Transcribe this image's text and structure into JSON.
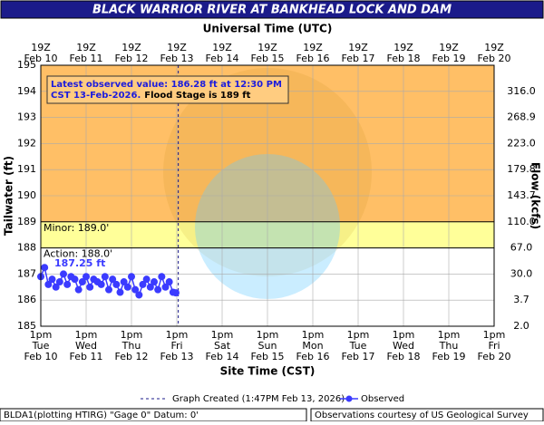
{
  "chart_data": {
    "type": "line",
    "title": "BLACK WARRIOR RIVER AT BANKHEAD LOCK AND DAM",
    "top_axis_title": "Universal Time (UTC)",
    "x_axis_title": "Site Time (CST)",
    "y_axis_title": "Tailwater (ft)",
    "y2_axis_title": "Flow (kcfs)",
    "ylim": [
      185,
      195
    ],
    "yticks": [
      185,
      186,
      187,
      188,
      189,
      190,
      191,
      192,
      193,
      194,
      195
    ],
    "flow_ticks": [
      {
        "stage": 194,
        "value": 316,
        "label": "316.0"
      },
      {
        "stage": 193,
        "value": 268.9,
        "label": "268.9"
      },
      {
        "stage": 192,
        "value": 223,
        "label": "223.0"
      },
      {
        "stage": 191,
        "value": 179.8,
        "label": "179.8"
      },
      {
        "stage": 190,
        "value": 143.7,
        "label": "143.7"
      },
      {
        "stage": 189,
        "value": 110,
        "label": "110.0"
      },
      {
        "stage": 188,
        "value": 67,
        "label": "67.0"
      },
      {
        "stage": 187,
        "value": 30,
        "label": "30.0"
      },
      {
        "stage": 186,
        "value": 3.7,
        "label": "3.7"
      },
      {
        "stage": 185,
        "value": 2,
        "label": "2.0"
      }
    ],
    "x_ticks_bottom": [
      {
        "time": "1pm",
        "day": "Tue",
        "date": "Feb 10"
      },
      {
        "time": "1pm",
        "day": "Wed",
        "date": "Feb 11"
      },
      {
        "time": "1pm",
        "day": "Thu",
        "date": "Feb 12"
      },
      {
        "time": "1pm",
        "day": "Fri",
        "date": "Feb 13"
      },
      {
        "time": "1pm",
        "day": "Sat",
        "date": "Feb 14"
      },
      {
        "time": "1pm",
        "day": "Sun",
        "date": "Feb 15"
      },
      {
        "time": "1pm",
        "day": "Mon",
        "date": "Feb 16"
      },
      {
        "time": "1pm",
        "day": "Tue",
        "date": "Feb 17"
      },
      {
        "time": "1pm",
        "day": "Wed",
        "date": "Feb 18"
      },
      {
        "time": "1pm",
        "day": "Thu",
        "date": "Feb 19"
      },
      {
        "time": "1pm",
        "day": "Fri",
        "date": "Feb 20"
      }
    ],
    "x_ticks_top": [
      {
        "time": "19Z",
        "date": "Feb 10"
      },
      {
        "time": "19Z",
        "date": "Feb 11"
      },
      {
        "time": "19Z",
        "date": "Feb 12"
      },
      {
        "time": "19Z",
        "date": "Feb 13"
      },
      {
        "time": "19Z",
        "date": "Feb 14"
      },
      {
        "time": "19Z",
        "date": "Feb 15"
      },
      {
        "time": "19Z",
        "date": "Feb 16"
      },
      {
        "time": "19Z",
        "date": "Feb 17"
      },
      {
        "time": "19Z",
        "date": "Feb 18"
      },
      {
        "time": "19Z",
        "date": "Feb 19"
      },
      {
        "time": "19Z",
        "date": "Feb 20"
      }
    ],
    "thresholds": [
      {
        "label": "Action: 188.0'",
        "value": 188,
        "color": "#ffff99"
      },
      {
        "label": "Minor: 189.0'",
        "value": 189,
        "color": "#ffbf66"
      }
    ],
    "peak_label": "187.25 ft",
    "latest_note": {
      "line1": "Latest observed value: 186.28 ft at 12:30 PM",
      "line2": "CST 13-Feb-2026.",
      "flood": "Flood Stage is 189 ft"
    },
    "created": {
      "x": "Feb 13 13:47",
      "label": "Graph Created (1:47PM Feb 13, 2026)"
    },
    "series": [
      {
        "name": "Observed",
        "color": "#3b3bff",
        "x": [
          "Feb 10 13:00",
          "Feb 10 15:00",
          "Feb 10 17:00",
          "Feb 10 19:00",
          "Feb 10 21:00",
          "Feb 10 23:00",
          "Feb 11 01:00",
          "Feb 11 03:00",
          "Feb 11 05:00",
          "Feb 11 07:00",
          "Feb 11 09:00",
          "Feb 11 11:00",
          "Feb 11 13:00",
          "Feb 11 15:00",
          "Feb 11 17:00",
          "Feb 11 19:00",
          "Feb 11 21:00",
          "Feb 11 23:00",
          "Feb 12 01:00",
          "Feb 12 03:00",
          "Feb 12 05:00",
          "Feb 12 07:00",
          "Feb 12 09:00",
          "Feb 12 11:00",
          "Feb 12 13:00",
          "Feb 12 15:00",
          "Feb 12 17:00",
          "Feb 12 19:00",
          "Feb 12 21:00",
          "Feb 12 23:00",
          "Feb 13 01:00",
          "Feb 13 03:00",
          "Feb 13 05:00",
          "Feb 13 07:00",
          "Feb 13 09:00",
          "Feb 13 11:00",
          "Feb 13 12:30"
        ],
        "values": [
          186.9,
          187.25,
          186.6,
          186.8,
          186.5,
          186.7,
          187.0,
          186.6,
          186.9,
          186.8,
          186.4,
          186.7,
          186.9,
          186.5,
          186.8,
          186.7,
          186.6,
          186.9,
          186.4,
          186.8,
          186.6,
          186.3,
          186.7,
          186.5,
          186.9,
          186.4,
          186.2,
          186.6,
          186.8,
          186.5,
          186.7,
          186.4,
          186.9,
          186.5,
          186.7,
          186.3,
          186.28
        ]
      }
    ],
    "footer_left": "BLDA1(plotting HTIRG) \"Gage 0\" Datum: 0'",
    "footer_right": "Observations courtesy of US Geological Survey"
  }
}
